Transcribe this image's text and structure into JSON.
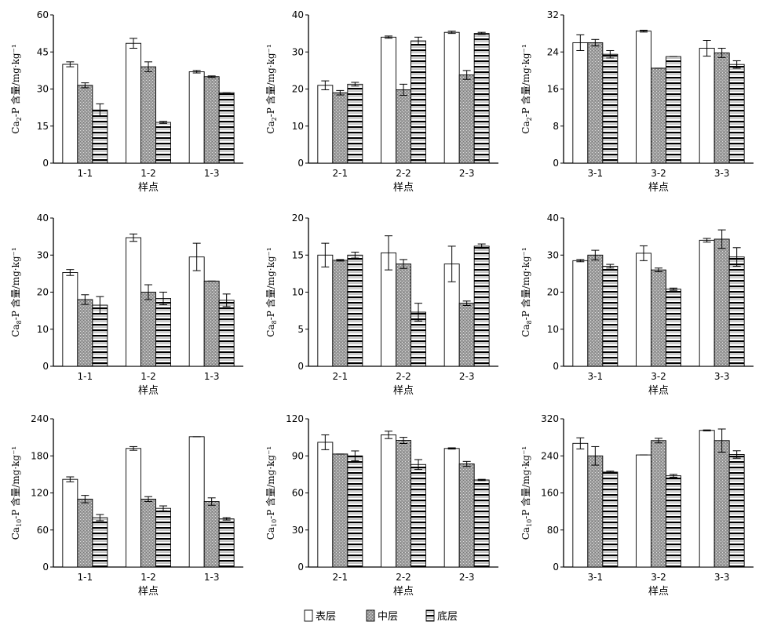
{
  "legend": [
    "表层",
    "中层",
    "底层"
  ],
  "chart_data": [
    {
      "type": "bar",
      "ylabel_main": "Ca",
      "ylabel_sub": "2",
      "ylabel_rest": "-P 含量/mg·kg⁻¹",
      "xlabel": "样点",
      "categories": [
        "1-1",
        "1-2",
        "1-3"
      ],
      "ylim": [
        0,
        60
      ],
      "yticks": [
        0,
        15,
        30,
        45,
        60
      ],
      "series": [
        {
          "name": "表层",
          "values": [
            40,
            48.5,
            37
          ],
          "errors": [
            1,
            2,
            0.5
          ]
        },
        {
          "name": "中层",
          "values": [
            31.5,
            39,
            35
          ],
          "errors": [
            1,
            2,
            0.3
          ]
        },
        {
          "name": "底层",
          "values": [
            21.5,
            16.5,
            28.5
          ],
          "errors": [
            2.5,
            0.4,
            0
          ]
        }
      ]
    },
    {
      "type": "bar",
      "ylabel_main": "Ca",
      "ylabel_sub": "2",
      "ylabel_rest": "-P 含量/mg·kg⁻¹",
      "xlabel": "样点",
      "categories": [
        "2-1",
        "2-2",
        "2-3"
      ],
      "ylim": [
        0,
        40
      ],
      "yticks": [
        0,
        10,
        20,
        30,
        40
      ],
      "series": [
        {
          "name": "表层",
          "values": [
            21,
            34,
            35.3
          ],
          "errors": [
            1.2,
            0.3,
            0.3
          ]
        },
        {
          "name": "中层",
          "values": [
            19,
            19.8,
            23.8
          ],
          "errors": [
            0.6,
            1.5,
            1.2
          ]
        },
        {
          "name": "底层",
          "values": [
            21.3,
            33,
            35
          ],
          "errors": [
            0.5,
            1,
            0.3
          ]
        }
      ]
    },
    {
      "type": "bar",
      "ylabel_main": "Ca",
      "ylabel_sub": "2",
      "ylabel_rest": "-P 含量/mg·kg⁻¹",
      "xlabel": "样点",
      "categories": [
        "3-1",
        "3-2",
        "3-3"
      ],
      "ylim": [
        0,
        32
      ],
      "yticks": [
        0,
        8,
        16,
        24,
        32
      ],
      "series": [
        {
          "name": "表层",
          "values": [
            26,
            28.5,
            24.8
          ],
          "errors": [
            1.7,
            0.2,
            1.7
          ]
        },
        {
          "name": "中层",
          "values": [
            26,
            20.5,
            23.8
          ],
          "errors": [
            0.7,
            0,
            1
          ]
        },
        {
          "name": "底层",
          "values": [
            23.5,
            23,
            21.3
          ],
          "errors": [
            0.8,
            0,
            0.8
          ]
        }
      ]
    },
    {
      "type": "bar",
      "ylabel_main": "Ca",
      "ylabel_sub": "8",
      "ylabel_rest": "-P 含量/mg·kg⁻¹",
      "xlabel": "样点",
      "categories": [
        "1-1",
        "1-2",
        "1-3"
      ],
      "ylim": [
        0,
        40
      ],
      "yticks": [
        0,
        10,
        20,
        30,
        40
      ],
      "series": [
        {
          "name": "表层",
          "values": [
            25.3,
            34.7,
            29.5
          ],
          "errors": [
            0.8,
            1,
            3.7
          ]
        },
        {
          "name": "中层",
          "values": [
            18,
            20,
            23
          ],
          "errors": [
            1.3,
            2,
            0
          ]
        },
        {
          "name": "底层",
          "values": [
            16.5,
            18.3,
            17.8
          ],
          "errors": [
            2.3,
            1.7,
            1.7
          ]
        }
      ]
    },
    {
      "type": "bar",
      "ylabel_main": "Ca",
      "ylabel_sub": "8",
      "ylabel_rest": "-P 含量/mg·kg⁻¹",
      "xlabel": "样点",
      "categories": [
        "2-1",
        "2-2",
        "2-3"
      ],
      "ylim": [
        0,
        20
      ],
      "yticks": [
        0,
        5,
        10,
        15,
        20
      ],
      "series": [
        {
          "name": "表层",
          "values": [
            15,
            15.3,
            13.8
          ],
          "errors": [
            1.6,
            2.3,
            2.4
          ]
        },
        {
          "name": "中层",
          "values": [
            14.3,
            13.8,
            8.5
          ],
          "errors": [
            0.1,
            0.6,
            0.3
          ]
        },
        {
          "name": "底层",
          "values": [
            15,
            7.3,
            16.2
          ],
          "errors": [
            0.4,
            1.2,
            0.3
          ]
        }
      ]
    },
    {
      "type": "bar",
      "ylabel_main": "Ca",
      "ylabel_sub": "8",
      "ylabel_rest": "-P 含量/mg·kg⁻¹",
      "xlabel": "样点",
      "categories": [
        "3-1",
        "3-2",
        "3-3"
      ],
      "ylim": [
        0,
        40
      ],
      "yticks": [
        0,
        10,
        20,
        30,
        40
      ],
      "series": [
        {
          "name": "表层",
          "values": [
            28.5,
            30.5,
            34
          ],
          "errors": [
            0.3,
            2,
            0.5
          ]
        },
        {
          "name": "中层",
          "values": [
            30,
            26,
            34.3
          ],
          "errors": [
            1.3,
            0.5,
            2.5
          ]
        },
        {
          "name": "底层",
          "values": [
            27,
            20.8,
            29.5
          ],
          "errors": [
            0.5,
            0.3,
            2.5
          ]
        }
      ]
    },
    {
      "type": "bar",
      "ylabel_main": "Ca",
      "ylabel_sub": "10",
      "ylabel_rest": "-P 含量/mg·kg⁻¹",
      "xlabel": "样点",
      "categories": [
        "1-1",
        "1-2",
        "1-3"
      ],
      "ylim": [
        0,
        240
      ],
      "yticks": [
        0,
        60,
        120,
        180,
        240
      ],
      "series": [
        {
          "name": "表层",
          "values": [
            142,
            192,
            211
          ],
          "errors": [
            4,
            3,
            0
          ]
        },
        {
          "name": "中层",
          "values": [
            110,
            110,
            106
          ],
          "errors": [
            6,
            4,
            6
          ]
        },
        {
          "name": "底层",
          "values": [
            80,
            95,
            78
          ],
          "errors": [
            5,
            4,
            2
          ]
        }
      ]
    },
    {
      "type": "bar",
      "ylabel_main": "Ca",
      "ylabel_sub": "10",
      "ylabel_rest": "-P 含量/mg·kg⁻¹",
      "xlabel": "样点",
      "categories": [
        "2-1",
        "2-2",
        "2-3"
      ],
      "ylim": [
        0,
        120
      ],
      "yticks": [
        0,
        30,
        60,
        90,
        120
      ],
      "series": [
        {
          "name": "表层",
          "values": [
            101,
            107,
            96
          ],
          "errors": [
            6,
            3,
            0.5
          ]
        },
        {
          "name": "中层",
          "values": [
            91.5,
            102.5,
            83.5
          ],
          "errors": [
            0,
            2.5,
            2
          ]
        },
        {
          "name": "底层",
          "values": [
            90,
            83,
            70.5
          ],
          "errors": [
            4,
            4,
            0.5
          ]
        }
      ]
    },
    {
      "type": "bar",
      "ylabel_main": "Ca",
      "ylabel_sub": "10",
      "ylabel_rest": "-P 含量/mg·kg⁻¹",
      "xlabel": "样点",
      "categories": [
        "3-1",
        "3-2",
        "3-3"
      ],
      "ylim": [
        0,
        320
      ],
      "yticks": [
        0,
        80,
        160,
        240,
        320
      ],
      "series": [
        {
          "name": "表层",
          "values": [
            267,
            242,
            295
          ],
          "errors": [
            12,
            0,
            1
          ]
        },
        {
          "name": "中层",
          "values": [
            240,
            273,
            273
          ],
          "errors": [
            20,
            5,
            25
          ]
        },
        {
          "name": "底层",
          "values": [
            205,
            197,
            243
          ],
          "errors": [
            2,
            3,
            8
          ]
        }
      ]
    }
  ]
}
